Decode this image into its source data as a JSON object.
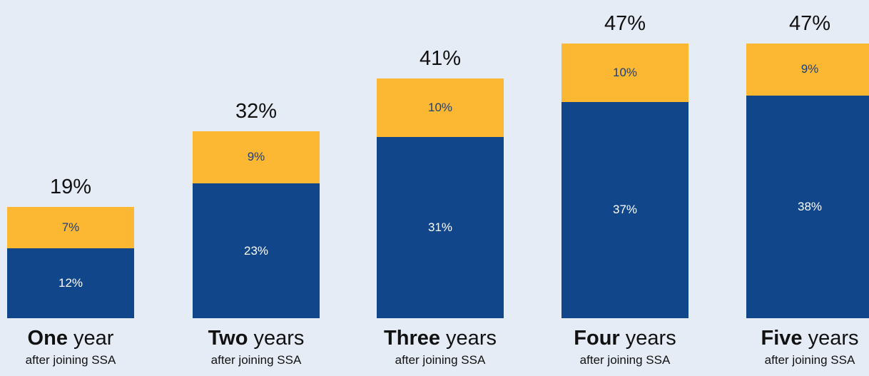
{
  "chart_data": {
    "type": "bar",
    "stacked": true,
    "categories": [
      {
        "bold": "One",
        "rest": " year",
        "sub": "after joining SSA"
      },
      {
        "bold": "Two",
        "rest": " years",
        "sub": "after joining SSA"
      },
      {
        "bold": "Three",
        "rest": " years",
        "sub": "after joining SSA"
      },
      {
        "bold": "Four",
        "rest": " years",
        "sub": "after joining SSA"
      },
      {
        "bold": "Five",
        "rest": " years",
        "sub": "after joining SSA"
      }
    ],
    "series": [
      {
        "values": [
          12,
          23,
          31,
          37,
          38
        ],
        "labels": [
          "12%",
          "23%",
          "31%",
          "37%",
          "38%"
        ],
        "color": "#11468a"
      },
      {
        "values": [
          7,
          9,
          10,
          10,
          9
        ],
        "labels": [
          "7%",
          "9%",
          "10%",
          "10%",
          "9%"
        ],
        "color": "#fdb833"
      }
    ],
    "totals": [
      19,
      32,
      41,
      47,
      47
    ],
    "total_labels": [
      "19%",
      "32%",
      "41%",
      "47%",
      "47%"
    ],
    "ylim": [
      0,
      50
    ],
    "grid": false,
    "title": "",
    "xlabel": "",
    "ylabel": ""
  }
}
